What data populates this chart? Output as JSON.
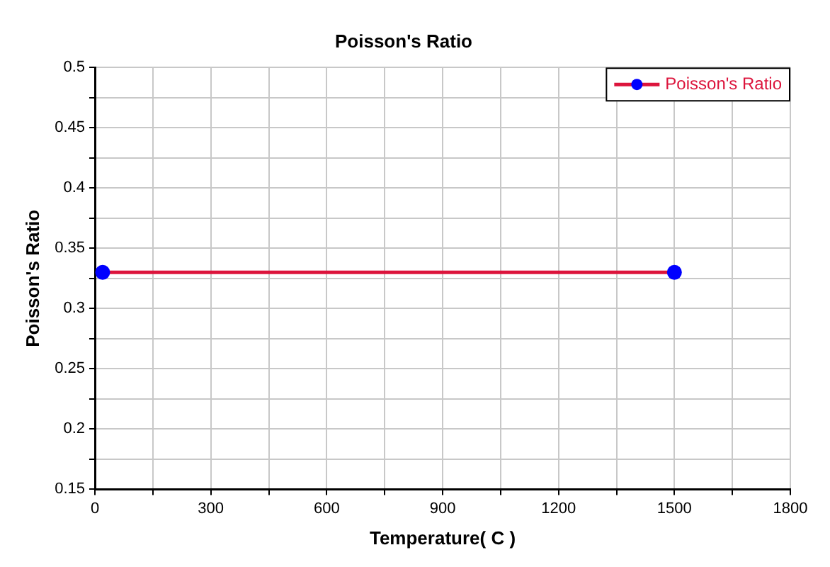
{
  "chart_data": {
    "type": "line",
    "title": "Poisson's Ratio",
    "xlabel": "Temperature( C )",
    "ylabel": "Poisson's Ratio",
    "series": [
      {
        "name": "Poisson's Ratio",
        "color": "#dc143c",
        "colors": [
          "#0000ff",
          "#0000ff"
        ],
        "x": [
          20,
          1500
        ],
        "values": [
          0.33,
          0.33
        ]
      }
    ],
    "xlim": [
      0,
      1800
    ],
    "xticks": [
      0,
      {
        "value": 150,
        "label": null
      },
      300,
      {
        "value": 450,
        "label": null
      },
      600,
      {
        "value": 750,
        "label": null
      },
      900,
      {
        "value": 1050,
        "label": null
      },
      1200,
      {
        "value": 1350,
        "label": null
      },
      1500,
      {
        "value": 1650,
        "label": null
      },
      1800
    ],
    "ylim": [
      0.15,
      0.5
    ],
    "yticks": [
      0.15,
      {
        "value": 0.175,
        "label": null
      },
      0.2,
      {
        "value": 0.225,
        "label": null
      },
      0.25,
      {
        "value": 0.275,
        "label": null
      },
      0.3,
      {
        "value": 0.325,
        "label": null
      },
      0.35,
      {
        "value": 0.375,
        "label": null
      },
      0.4,
      {
        "value": 0.425,
        "label": null
      },
      0.45,
      {
        "value": 0.475,
        "label": null
      },
      0.5
    ],
    "grid": true,
    "legend": "top right",
    "marker": "circle",
    "line_style": "solid"
  }
}
